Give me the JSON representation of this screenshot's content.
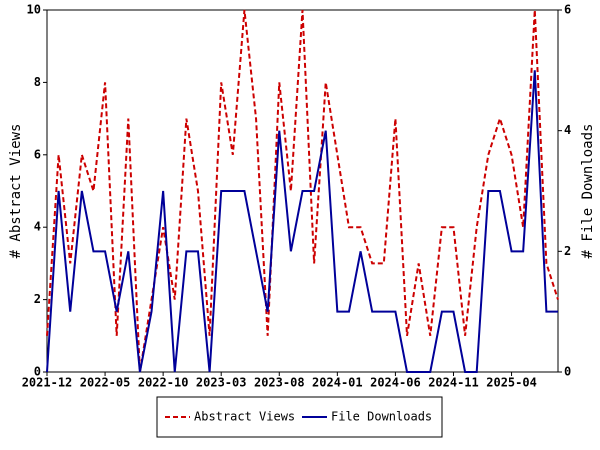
{
  "chart_data": {
    "type": "line",
    "categories": [
      "2021-12",
      null,
      null,
      null,
      null,
      "2022-05",
      null,
      null,
      null,
      null,
      "2022-10",
      null,
      null,
      null,
      null,
      "2023-03",
      null,
      null,
      null,
      null,
      "2023-08",
      null,
      null,
      null,
      null,
      "2024-01",
      null,
      null,
      null,
      null,
      "2024-06",
      null,
      null,
      null,
      null,
      "2024-11",
      null,
      null,
      null,
      null,
      "2025-04",
      null,
      null,
      null,
      null
    ],
    "ylabel": "# Abstract Views",
    "y2label": "# File Downloads",
    "ylim": [
      0,
      10
    ],
    "yticks": [
      0,
      2,
      4,
      6,
      8,
      10
    ],
    "y2lim": [
      0,
      6
    ],
    "y2ticks": [
      0,
      2,
      4,
      6
    ],
    "grid": false,
    "legend": "bottom",
    "series": [
      {
        "name": "Abstract Views",
        "color": "#cc0000",
        "dash": true,
        "values": [
          1,
          6,
          3,
          6,
          5,
          8,
          1,
          7,
          0,
          2,
          4,
          2,
          7,
          5,
          1,
          8,
          6,
          10,
          7,
          1,
          8,
          5,
          10,
          3,
          8,
          6,
          4,
          4,
          3,
          3,
          7,
          1,
          3,
          1,
          4,
          4,
          1,
          4,
          6,
          7,
          6,
          4,
          10,
          3,
          2
        ]
      },
      {
        "name": "File Downloads",
        "color": "#000099",
        "axis": "y2",
        "dash": false,
        "values": [
          0,
          3,
          1,
          3,
          2,
          2,
          1,
          2,
          0,
          1,
          3,
          0,
          2,
          2,
          0,
          3,
          3,
          3,
          2,
          1,
          4,
          2,
          3,
          3,
          4,
          1,
          1,
          2,
          1,
          1,
          1,
          0,
          0,
          0,
          1,
          1,
          0,
          0,
          3,
          3,
          2,
          2,
          5,
          1,
          1
        ]
      }
    ]
  }
}
